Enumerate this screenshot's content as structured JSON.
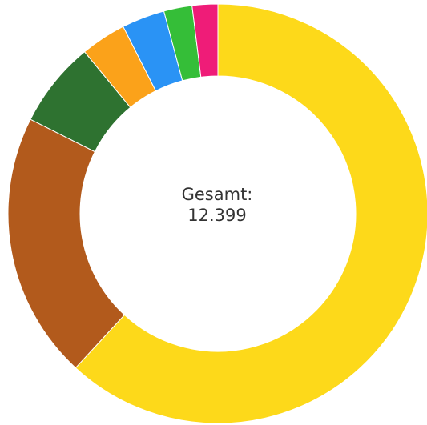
{
  "chart_data": {
    "type": "pie",
    "variant": "donut",
    "center_label": "Gesamt:",
    "center_value": "12.399",
    "slices": [
      {
        "value": 7670,
        "color": "#FDD91A"
      },
      {
        "value": 2550,
        "color": "#B25A1C"
      },
      {
        "value": 820,
        "color": "#2E7230"
      },
      {
        "value": 435,
        "color": "#FBA21A"
      },
      {
        "value": 410,
        "color": "#2A93F5"
      },
      {
        "value": 270,
        "color": "#35BE38"
      },
      {
        "value": 244,
        "color": "#EF1C78"
      }
    ]
  }
}
